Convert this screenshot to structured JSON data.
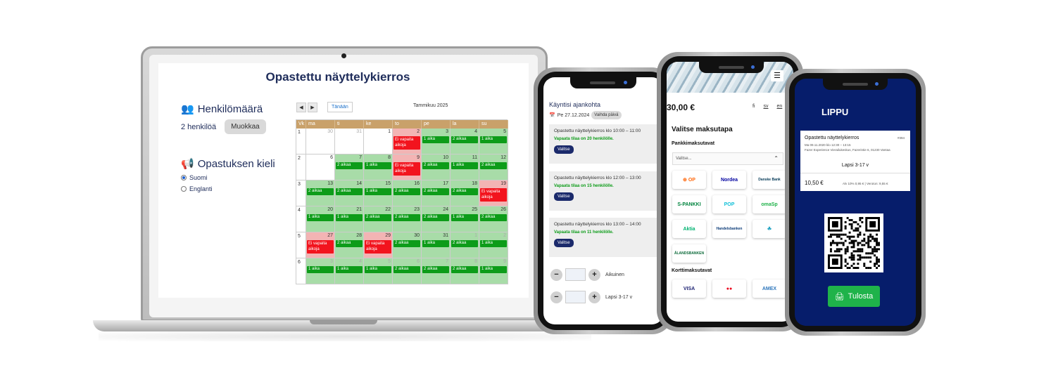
{
  "desktop": {
    "title": "Opastettu näyttelykierros",
    "persons_heading": "Henkilömäärä",
    "persons_value": "2 henkilöä",
    "edit_label": "Muokkaa",
    "language_heading": "Opastuksen kieli",
    "languages": [
      {
        "label": "Suomi",
        "selected": true
      },
      {
        "label": "Englanti",
        "selected": false
      }
    ],
    "calendar": {
      "today_label": "Tänään",
      "month_label": "Tammikuu 2025",
      "headers": [
        "Vk",
        "ma",
        "ti",
        "ke",
        "to",
        "pe",
        "la",
        "su"
      ],
      "weeks": [
        {
          "wk": "1",
          "days": [
            {
              "n": "30",
              "dim": true,
              "state": "white",
              "slot": ""
            },
            {
              "n": "31",
              "dim": true,
              "state": "white",
              "slot": ""
            },
            {
              "n": "1",
              "dim": false,
              "state": "white",
              "slot": ""
            },
            {
              "n": "2",
              "dim": false,
              "state": "red",
              "slot": "Ei vapaita aikoja"
            },
            {
              "n": "3",
              "dim": false,
              "state": "green",
              "slot": "1 aika"
            },
            {
              "n": "4",
              "dim": false,
              "state": "green",
              "slot": "2 aikaa"
            },
            {
              "n": "5",
              "dim": false,
              "state": "green",
              "slot": "1 aika"
            }
          ]
        },
        {
          "wk": "2",
          "days": [
            {
              "n": "6",
              "dim": false,
              "state": "white",
              "slot": ""
            },
            {
              "n": "7",
              "dim": false,
              "state": "green",
              "slot": "2 aikaa"
            },
            {
              "n": "8",
              "dim": false,
              "state": "green",
              "slot": "1 aika"
            },
            {
              "n": "9",
              "dim": false,
              "state": "red",
              "slot": "Ei vapaita aikoja"
            },
            {
              "n": "10",
              "dim": false,
              "state": "green",
              "slot": "2 aikaa"
            },
            {
              "n": "11",
              "dim": false,
              "state": "green",
              "slot": "1 aika"
            },
            {
              "n": "12",
              "dim": false,
              "state": "green",
              "slot": "2 aikaa"
            }
          ]
        },
        {
          "wk": "3",
          "days": [
            {
              "n": "13",
              "dim": false,
              "state": "green",
              "slot": "2 aikaa"
            },
            {
              "n": "14",
              "dim": false,
              "state": "green",
              "slot": "2 aikaa"
            },
            {
              "n": "15",
              "dim": false,
              "state": "green",
              "slot": "1 aika"
            },
            {
              "n": "16",
              "dim": false,
              "state": "green",
              "slot": "2 aikaa"
            },
            {
              "n": "17",
              "dim": false,
              "state": "green",
              "slot": "2 aikaa"
            },
            {
              "n": "18",
              "dim": false,
              "state": "green",
              "slot": "2 aikaa"
            },
            {
              "n": "19",
              "dim": false,
              "state": "red",
              "slot": "Ei vapaita aikoja"
            }
          ]
        },
        {
          "wk": "4",
          "days": [
            {
              "n": "20",
              "dim": false,
              "state": "green",
              "slot": "1 aika"
            },
            {
              "n": "21",
              "dim": false,
              "state": "green",
              "slot": "1 aika"
            },
            {
              "n": "22",
              "dim": false,
              "state": "green",
              "slot": "2 aikaa"
            },
            {
              "n": "23",
              "dim": false,
              "state": "green",
              "slot": "2 aikaa"
            },
            {
              "n": "24",
              "dim": false,
              "state": "green",
              "slot": "2 aikaa"
            },
            {
              "n": "25",
              "dim": false,
              "state": "green",
              "slot": "1 aika"
            },
            {
              "n": "26",
              "dim": false,
              "state": "green",
              "slot": "2 aikaa"
            }
          ]
        },
        {
          "wk": "5",
          "days": [
            {
              "n": "27",
              "dim": false,
              "state": "red",
              "slot": "Ei vapaita aikoja"
            },
            {
              "n": "28",
              "dim": false,
              "state": "green",
              "slot": "2 aikaa"
            },
            {
              "n": "29",
              "dim": false,
              "state": "red",
              "slot": "Ei vapaita aikoja"
            },
            {
              "n": "30",
              "dim": false,
              "state": "green",
              "slot": "2 aikaa"
            },
            {
              "n": "31",
              "dim": false,
              "state": "green",
              "slot": "1 aika"
            },
            {
              "n": "1",
              "dim": true,
              "state": "green",
              "slot": "2 aikaa"
            },
            {
              "n": "2",
              "dim": true,
              "state": "green",
              "slot": "1 aika"
            }
          ]
        },
        {
          "wk": "6",
          "days": [
            {
              "n": "3",
              "dim": true,
              "state": "green",
              "slot": "1 aika"
            },
            {
              "n": "4",
              "dim": true,
              "state": "green",
              "slot": "1 aika"
            },
            {
              "n": "5",
              "dim": true,
              "state": "green",
              "slot": "1 aika"
            },
            {
              "n": "6",
              "dim": true,
              "state": "green",
              "slot": "2 aikaa"
            },
            {
              "n": "7",
              "dim": true,
              "state": "green",
              "slot": "2 aikaa"
            },
            {
              "n": "8",
              "dim": true,
              "state": "green",
              "slot": "2 aikaa"
            },
            {
              "n": "9",
              "dim": true,
              "state": "green",
              "slot": "1 aika"
            }
          ]
        }
      ]
    }
  },
  "phone1": {
    "title": "Käyntisi ajankohta",
    "date": "Pe 27.12.2024",
    "change_date_label": "Vaihda päivä",
    "tours": [
      {
        "name": "Opastettu näyttelykierros klo 10:00 – 11:00",
        "space": "Vapaata tilaa on 20 henkilölle.",
        "button": "Valitse"
      },
      {
        "name": "Opastettu näyttelykierros klo 12:00 – 13:00",
        "space": "Vapaata tilaa on 15 henkilölle.",
        "button": "Valitse"
      },
      {
        "name": "Opastettu näyttelykierros klo 13:00 – 14:00",
        "space": "Vapaata tilaa on 11 henkilölle.",
        "button": "Valitse"
      }
    ],
    "steppers": [
      {
        "label": "Aikuinen"
      },
      {
        "label": "Lapsi 3-17 v"
      }
    ]
  },
  "phone2": {
    "price": "30,00 €",
    "langs": [
      "fi",
      "sv",
      "en"
    ],
    "payment_title": "Valitse maksutapa",
    "bank_heading": "Pankkimaksutavat",
    "select_placeholder": "Valitse...",
    "banks": [
      {
        "label": "⊕ OP",
        "color": "#ff6a10"
      },
      {
        "label": "Nordea",
        "color": "#0000a0"
      },
      {
        "label": "Danske Bank",
        "color": "#003755"
      },
      {
        "label": "S-PANKKI",
        "color": "#00833e"
      },
      {
        "label": "POP",
        "color": "#11c0d8"
      },
      {
        "label": "omaSp",
        "color": "#20b24a"
      },
      {
        "label": "Aktia",
        "color": "#00b371"
      },
      {
        "label": "Handelsbanken",
        "color": "#0a3a77"
      },
      {
        "label": "☘",
        "color": "#1aa0c0"
      },
      {
        "label": "ÅLANDSBANKEN",
        "color": "#0c6a3a"
      }
    ],
    "card_heading": "Korttimaksutavat",
    "cards": [
      {
        "label": "VISA",
        "color": "#1a1f71"
      },
      {
        "label": "●●",
        "color": "#eb001b"
      },
      {
        "label": "AMEX",
        "color": "#2e77bc"
      }
    ]
  },
  "phone3": {
    "title": "LIPPU",
    "ticket_name": "Opastettu näyttelykierros",
    "ticket_code": "#394",
    "ticket_time": "Ma 09.11.2020 klo 12:30 – 13:15",
    "ticket_place": "Fazer Experience Vierailukeskus, Fazerintie 6, 01230 Vantaa",
    "ticket_category": "Lapsi 3-17 v",
    "ticket_price": "10,50 €",
    "ticket_tax": "Alv 10% 0,95 € | Veroton: 9,55 €",
    "print_label": "Tulosta"
  }
}
